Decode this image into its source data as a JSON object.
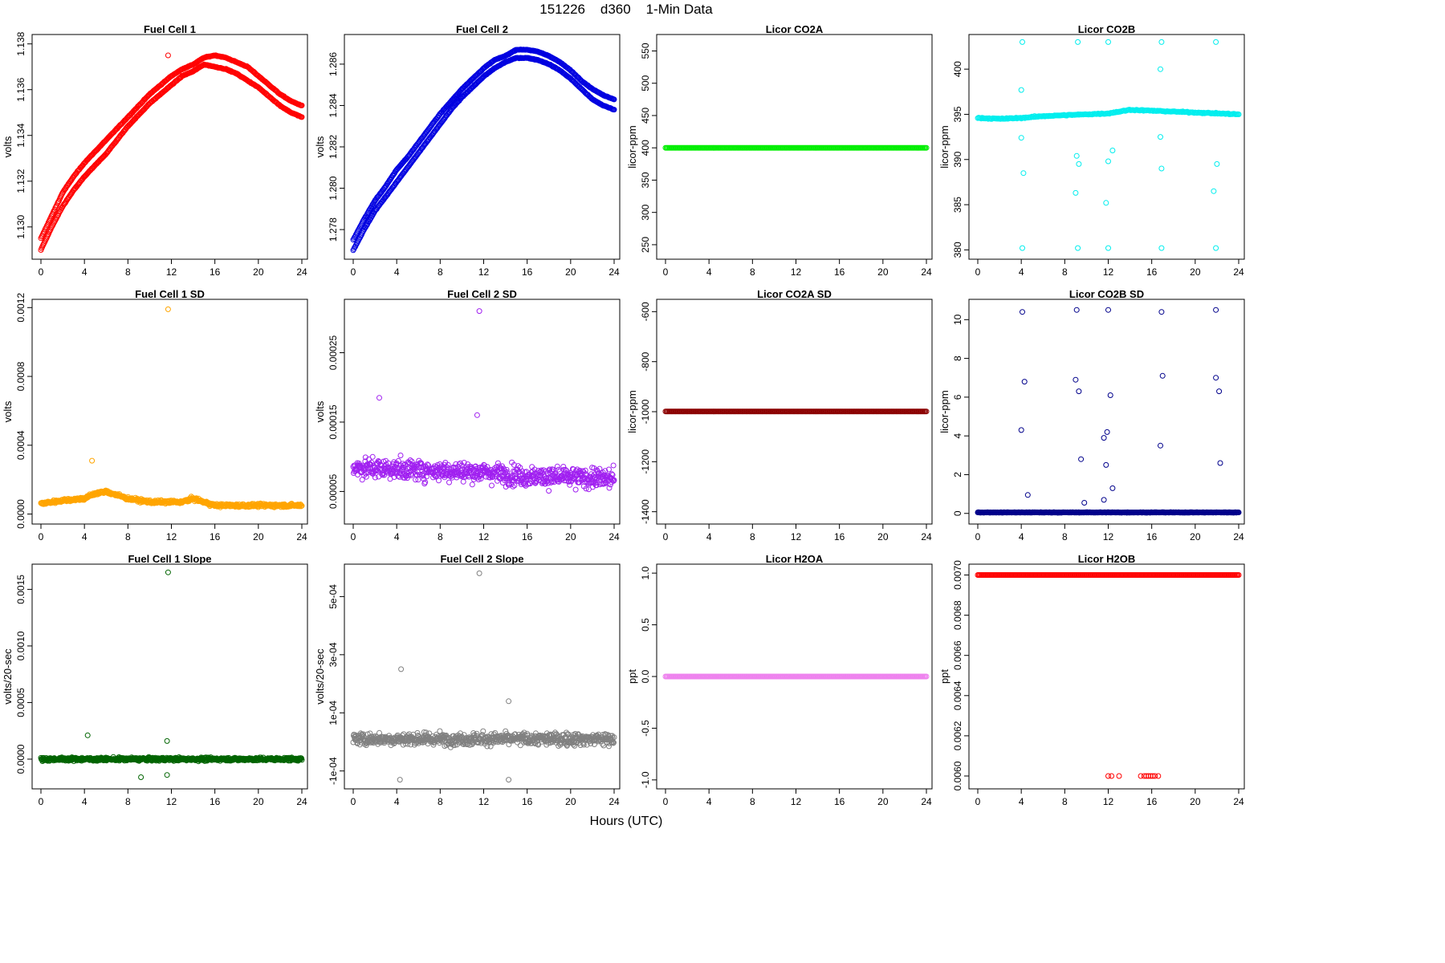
{
  "header": {
    "title": "151226    d360    1-Min Data"
  },
  "footer": {
    "xlabel": "Hours (UTC)"
  },
  "chart_data": [
    {
      "type": "scatter",
      "title": "Fuel Cell 1",
      "xlabel": "",
      "ylabel": "volts",
      "color": "#ff0000",
      "xlim": [
        0,
        24
      ],
      "ylim": [
        1.1288,
        1.1382
      ],
      "xticks": [
        0,
        4,
        8,
        12,
        16,
        20,
        24
      ],
      "yticks": [
        1.13,
        1.132,
        1.134,
        1.136,
        1.138
      ],
      "ytick_labels": [
        "1.130",
        "1.132",
        "1.134",
        "1.136",
        "1.138"
      ],
      "series": [
        {
          "x": [
            0,
            1,
            2,
            3,
            4,
            5,
            6,
            7,
            8,
            9,
            10,
            11,
            12,
            13,
            14,
            15,
            16,
            17,
            18,
            19,
            20,
            21,
            22,
            23,
            24
          ],
          "y": [
            1.1295,
            1.1305,
            1.1315,
            1.1322,
            1.1328,
            1.1333,
            1.1338,
            1.1343,
            1.1348,
            1.1353,
            1.1358,
            1.1362,
            1.1366,
            1.1369,
            1.1371,
            1.1374,
            1.1375,
            1.1374,
            1.1372,
            1.137,
            1.1366,
            1.1362,
            1.1358,
            1.1355,
            1.1353
          ]
        },
        {
          "x": [
            0,
            1,
            2,
            3,
            4,
            5,
            6,
            7,
            8,
            9,
            10,
            11,
            12,
            13,
            14,
            15,
            16,
            17,
            18,
            19,
            20,
            21,
            22,
            23,
            24
          ],
          "y": [
            1.129,
            1.13,
            1.1309,
            1.1316,
            1.1322,
            1.1327,
            1.1332,
            1.1338,
            1.1344,
            1.1349,
            1.1354,
            1.1358,
            1.1362,
            1.1366,
            1.1368,
            1.1371,
            1.137,
            1.1369,
            1.1367,
            1.1364,
            1.1361,
            1.1357,
            1.1353,
            1.135,
            1.1348
          ]
        }
      ],
      "outliers": [
        {
          "x": 11.7,
          "y": 1.1375
        }
      ]
    },
    {
      "type": "scatter",
      "title": "Fuel Cell 2",
      "xlabel": "",
      "ylabel": "volts",
      "color": "#0000e0",
      "xlim": [
        0,
        24
      ],
      "ylim": [
        1.2768,
        1.2872
      ],
      "xticks": [
        0,
        4,
        8,
        12,
        16,
        20,
        24
      ],
      "yticks": [
        1.278,
        1.28,
        1.282,
        1.284,
        1.286
      ],
      "ytick_labels": [
        "1.278",
        "1.280",
        "1.282",
        "1.284",
        "1.286"
      ],
      "series": [
        {
          "x": [
            0,
            1,
            2,
            3,
            4,
            5,
            6,
            7,
            8,
            9,
            10,
            11,
            12,
            13,
            14,
            15,
            16,
            17,
            18,
            19,
            20,
            21,
            22,
            23,
            24
          ],
          "y": [
            1.2775,
            1.2785,
            1.2794,
            1.2801,
            1.2809,
            1.2815,
            1.2822,
            1.2829,
            1.2836,
            1.2842,
            1.2848,
            1.2853,
            1.2858,
            1.2862,
            1.2864,
            1.2867,
            1.2867,
            1.2866,
            1.2864,
            1.2861,
            1.2857,
            1.2852,
            1.2848,
            1.2845,
            1.2843
          ]
        },
        {
          "x": [
            0,
            1,
            2,
            3,
            4,
            5,
            6,
            7,
            8,
            9,
            10,
            11,
            12,
            13,
            14,
            15,
            16,
            17,
            18,
            19,
            20,
            21,
            22,
            23,
            24
          ],
          "y": [
            1.277,
            1.278,
            1.2789,
            1.2796,
            1.2803,
            1.281,
            1.2817,
            1.2824,
            1.2831,
            1.2838,
            1.2844,
            1.2849,
            1.2854,
            1.2858,
            1.2861,
            1.2863,
            1.2863,
            1.2862,
            1.286,
            1.2857,
            1.2853,
            1.2848,
            1.2843,
            1.284,
            1.2838
          ]
        }
      ],
      "outliers": []
    },
    {
      "type": "scatter",
      "title": "Licor CO2A",
      "xlabel": "",
      "ylabel": "licor-ppm",
      "color": "#00ee00",
      "xlim": [
        0,
        24
      ],
      "ylim": [
        235,
        568
      ],
      "xticks": [
        0,
        4,
        8,
        12,
        16,
        20,
        24
      ],
      "yticks": [
        250,
        300,
        350,
        400,
        450,
        500,
        550
      ],
      "ytick_labels": [
        "250",
        "300",
        "350",
        "400",
        "450",
        "500",
        "550"
      ],
      "series": [
        {
          "x": [
            0,
            24
          ],
          "y": [
            400,
            400
          ]
        }
      ],
      "outliers": []
    },
    {
      "type": "scatter",
      "title": "Licor CO2B",
      "xlabel": "",
      "ylabel": "licor-ppm",
      "color": "#00eeee",
      "xlim": [
        0,
        24
      ],
      "ylim": [
        379.5,
        403.3
      ],
      "xticks": [
        0,
        4,
        8,
        12,
        16,
        20,
        24
      ],
      "yticks": [
        380,
        385,
        390,
        395,
        400
      ],
      "ytick_labels": [
        "380",
        "385",
        "390",
        "395",
        "400"
      ],
      "series": [
        {
          "x": [
            0,
            2,
            4,
            6,
            8,
            10,
            12,
            14,
            16,
            18,
            20,
            22,
            24
          ],
          "y": [
            394.6,
            394.5,
            394.6,
            394.8,
            394.9,
            395.0,
            395.1,
            395.5,
            395.4,
            395.3,
            395.2,
            395.1,
            395.0
          ]
        }
      ],
      "outliers": [
        {
          "x": 4.1,
          "y": 403
        },
        {
          "x": 9.2,
          "y": 403
        },
        {
          "x": 12,
          "y": 403
        },
        {
          "x": 16.9,
          "y": 403
        },
        {
          "x": 21.9,
          "y": 403
        },
        {
          "x": 4.1,
          "y": 380.2
        },
        {
          "x": 9.2,
          "y": 380.2
        },
        {
          "x": 12,
          "y": 380.2
        },
        {
          "x": 16.9,
          "y": 380.2
        },
        {
          "x": 21.9,
          "y": 380.2
        },
        {
          "x": 4.2,
          "y": 388.5
        },
        {
          "x": 9.0,
          "y": 386.3
        },
        {
          "x": 11.8,
          "y": 385.2
        },
        {
          "x": 21.7,
          "y": 386.5
        },
        {
          "x": 9.3,
          "y": 389.5
        },
        {
          "x": 12.0,
          "y": 389.8
        },
        {
          "x": 16.9,
          "y": 389.0
        },
        {
          "x": 22.0,
          "y": 389.5
        },
        {
          "x": 4.0,
          "y": 392.4
        },
        {
          "x": 9.1,
          "y": 390.4
        },
        {
          "x": 12.4,
          "y": 391.0
        },
        {
          "x": 16.8,
          "y": 392.5
        },
        {
          "x": 16.8,
          "y": 400.0
        },
        {
          "x": 4.0,
          "y": 397.7
        }
      ]
    },
    {
      "type": "scatter",
      "title": "Fuel Cell 1 SD",
      "xlabel": "",
      "ylabel": "volts",
      "color": "#ffa500",
      "xlim": [
        0,
        24
      ],
      "ylim": [
        -3e-05,
        0.00122
      ],
      "xticks": [
        0,
        4,
        8,
        12,
        16,
        20,
        24
      ],
      "yticks": [
        0,
        0.0004,
        0.0008,
        0.0012
      ],
      "ytick_labels": [
        "0.0000",
        "0.0004",
        "0.0008",
        "0.0012"
      ],
      "series": [
        {
          "x": [
            0,
            2,
            4,
            5,
            6,
            8,
            10,
            12,
            13,
            14,
            16,
            18,
            20,
            22,
            24
          ],
          "y": [
            6e-05,
            8e-05,
            9e-05,
            0.00012,
            0.00013,
            9e-05,
            7e-05,
            7e-05,
            7e-05,
            9e-05,
            5e-05,
            5e-05,
            5e-05,
            5e-05,
            5e-05
          ]
        }
      ],
      "outliers": [
        {
          "x": 11.7,
          "y": 0.00119
        },
        {
          "x": 4.7,
          "y": 0.00031
        }
      ]
    },
    {
      "type": "scatter",
      "title": "Fuel Cell 2 SD",
      "xlabel": "",
      "ylabel": "volts",
      "color": "#a020f0",
      "xlim": [
        0,
        24
      ],
      "ylim": [
        1e-05,
        0.00032
      ],
      "xticks": [
        0,
        4,
        8,
        12,
        16,
        20,
        24
      ],
      "yticks": [
        5e-05,
        0.00015,
        0.00025
      ],
      "ytick_labels": [
        "0.00005",
        "0.00015",
        "0.00025"
      ],
      "series": [
        {
          "x": [
            0,
            4,
            8,
            12,
            16,
            20,
            24
          ],
          "y": [
            8.5e-05,
            8.2e-05,
            8e-05,
            7.8e-05,
            7.2e-05,
            7e-05,
            6.8e-05
          ]
        }
      ],
      "outliers": [
        {
          "x": 11.6,
          "y": 0.00031
        },
        {
          "x": 2.4,
          "y": 0.000185
        },
        {
          "x": 11.4,
          "y": 0.00016
        }
      ]
    },
    {
      "type": "scatter",
      "title": "Licor CO2A SD",
      "xlabel": "",
      "ylabel": "licor-ppm",
      "color": "#8b0000",
      "xlim": [
        0,
        24
      ],
      "ylim": [
        -1430,
        -570
      ],
      "xticks": [
        0,
        4,
        8,
        12,
        16,
        20,
        24
      ],
      "yticks": [
        -1400,
        -1200,
        -1000,
        -800,
        -600
      ],
      "ytick_labels": [
        "-1400",
        "-1200",
        "-1000",
        "-800",
        "-600"
      ],
      "series": [
        {
          "x": [
            0,
            24
          ],
          "y": [
            -999,
            -999
          ]
        }
      ],
      "outliers": []
    },
    {
      "type": "scatter",
      "title": "Licor CO2B SD",
      "xlabel": "",
      "ylabel": "licor-ppm",
      "color": "#00008b",
      "xlim": [
        0,
        24
      ],
      "ylim": [
        -0.3,
        10.8
      ],
      "xticks": [
        0,
        4,
        8,
        12,
        16,
        20,
        24
      ],
      "yticks": [
        0,
        2,
        4,
        6,
        8,
        10
      ],
      "ytick_labels": [
        "0",
        "2",
        "4",
        "6",
        "8",
        "10"
      ],
      "series": [
        {
          "x": [
            0,
            4,
            8,
            12,
            16,
            20,
            24
          ],
          "y": [
            0.05,
            0.05,
            0.05,
            0.05,
            0.05,
            0.05,
            0.05
          ]
        }
      ],
      "outliers": [
        {
          "x": 4.1,
          "y": 10.4
        },
        {
          "x": 9.1,
          "y": 10.5
        },
        {
          "x": 12.0,
          "y": 10.5
        },
        {
          "x": 16.9,
          "y": 10.4
        },
        {
          "x": 21.9,
          "y": 10.5
        },
        {
          "x": 4.3,
          "y": 6.8
        },
        {
          "x": 9.0,
          "y": 6.9
        },
        {
          "x": 9.3,
          "y": 6.3
        },
        {
          "x": 12.2,
          "y": 6.1
        },
        {
          "x": 17.0,
          "y": 7.1
        },
        {
          "x": 21.9,
          "y": 7.0
        },
        {
          "x": 22.2,
          "y": 6.3
        },
        {
          "x": 4.0,
          "y": 4.3
        },
        {
          "x": 11.9,
          "y": 4.2
        },
        {
          "x": 11.6,
          "y": 3.9
        },
        {
          "x": 16.8,
          "y": 3.5
        },
        {
          "x": 9.5,
          "y": 2.8
        },
        {
          "x": 11.8,
          "y": 2.5
        },
        {
          "x": 22.3,
          "y": 2.6
        },
        {
          "x": 12.4,
          "y": 1.3
        },
        {
          "x": 4.6,
          "y": 0.95
        },
        {
          "x": 11.6,
          "y": 0.7
        },
        {
          "x": 9.8,
          "y": 0.55
        }
      ]
    },
    {
      "type": "scatter",
      "title": "Fuel Cell 1 Slope",
      "xlabel": "",
      "ylabel": "volts/20-sec",
      "color": "#006400",
      "xlim": [
        0,
        24
      ],
      "ylim": [
        -0.00022,
        0.00168
      ],
      "xticks": [
        0,
        4,
        8,
        12,
        16,
        20,
        24
      ],
      "yticks": [
        0,
        0.0005,
        0.001,
        0.0015
      ],
      "ytick_labels": [
        "0.0000",
        "0.0005",
        "0.0010",
        "0.0015"
      ],
      "series": [
        {
          "x": [
            0,
            24
          ],
          "y": [
            0,
            0
          ]
        }
      ],
      "outliers": [
        {
          "x": 11.7,
          "y": 0.00165
        },
        {
          "x": 4.3,
          "y": 0.00021
        },
        {
          "x": 11.6,
          "y": 0.00016
        },
        {
          "x": 9.2,
          "y": -0.00016
        },
        {
          "x": 11.6,
          "y": -0.00014
        }
      ]
    },
    {
      "type": "scatter",
      "title": "Fuel Cell 2 Slope",
      "xlabel": "",
      "ylabel": "volts/20-sec",
      "color": "#808080",
      "xlim": [
        0,
        24
      ],
      "ylim": [
        -0.000145,
        0.000595
      ],
      "xticks": [
        0,
        4,
        8,
        12,
        16,
        20,
        24
      ],
      "yticks": [
        -0.0001,
        0.0001,
        0.0003,
        0.0005
      ],
      "ytick_labels": [
        "-1e-04",
        "1e-04",
        "3e-04",
        "5e-04"
      ],
      "series": [
        {
          "x": [
            0,
            24
          ],
          "y": [
            1e-05,
            1e-05
          ]
        }
      ],
      "outliers": [
        {
          "x": 11.6,
          "y": 0.00058
        },
        {
          "x": 4.4,
          "y": 0.00025
        },
        {
          "x": 14.3,
          "y": 0.00014
        },
        {
          "x": 4.3,
          "y": -0.00013
        },
        {
          "x": 14.3,
          "y": -0.00013
        }
      ]
    },
    {
      "type": "scatter",
      "title": "Licor H2OA",
      "xlabel": "",
      "ylabel": "ppt",
      "color": "#ee82ee",
      "xlim": [
        0,
        24
      ],
      "ylim": [
        -1.04,
        1.04
      ],
      "xticks": [
        0,
        4,
        8,
        12,
        16,
        20,
        24
      ],
      "yticks": [
        -1,
        -0.5,
        0,
        0.5,
        1
      ],
      "ytick_labels": [
        "-1.0",
        "-0.5",
        "0.0",
        "0.5",
        "1.0"
      ],
      "series": [
        {
          "x": [
            0,
            24
          ],
          "y": [
            0,
            0
          ]
        }
      ],
      "outliers": []
    },
    {
      "type": "scatter",
      "title": "Licor H2OB",
      "xlabel": "",
      "ylabel": "ppt",
      "color": "#ff0000",
      "xlim": [
        0,
        24
      ],
      "ylim": [
        0.00596,
        0.00703
      ],
      "xticks": [
        0,
        4,
        8,
        12,
        16,
        20,
        24
      ],
      "yticks": [
        0.006,
        0.0062,
        0.0064,
        0.0066,
        0.0068,
        0.007
      ],
      "ytick_labels": [
        "0.0060",
        "0.0062",
        "0.0064",
        "0.0066",
        "0.0068",
        "0.0070"
      ],
      "series": [
        {
          "x": [
            0,
            24
          ],
          "y": [
            0.007,
            0.007
          ]
        }
      ],
      "outliers": [
        {
          "x": 12.0,
          "y": 0.006
        },
        {
          "x": 12.3,
          "y": 0.006
        },
        {
          "x": 13.0,
          "y": 0.006
        },
        {
          "x": 15.0,
          "y": 0.006
        },
        {
          "x": 15.3,
          "y": 0.006
        },
        {
          "x": 15.5,
          "y": 0.006
        },
        {
          "x": 15.7,
          "y": 0.006
        },
        {
          "x": 15.9,
          "y": 0.006
        },
        {
          "x": 16.1,
          "y": 0.006
        },
        {
          "x": 16.3,
          "y": 0.006
        },
        {
          "x": 16.6,
          "y": 0.006
        }
      ]
    }
  ]
}
